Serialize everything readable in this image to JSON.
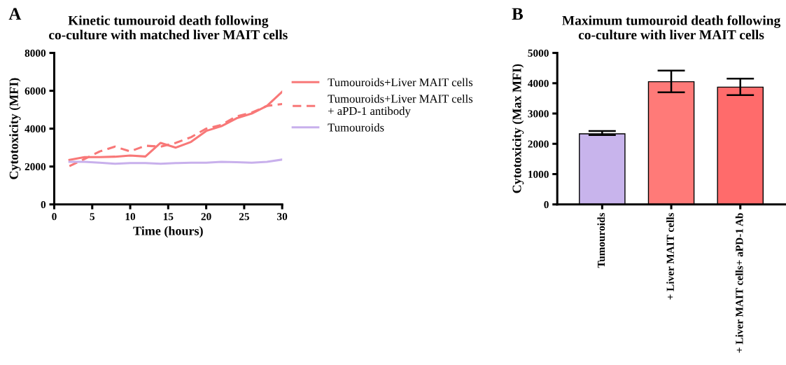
{
  "chart_data": [
    {
      "type": "line",
      "title": "Kinetic tumouroid death following\nco-culture with matched liver MAIT cells",
      "xlabel": "Time (hours)",
      "ylabel": "Cytotoxicity (MFI)",
      "annotations": [
        "A"
      ],
      "x": [
        2,
        4,
        6,
        8,
        10,
        12,
        14,
        16,
        18,
        20,
        22,
        24,
        26,
        28,
        30
      ],
      "xlim": [
        0,
        30
      ],
      "xticks": [
        0,
        5,
        10,
        15,
        20,
        25,
        30
      ],
      "ylim": [
        0,
        8000
      ],
      "yticks": [
        0,
        2000,
        4000,
        6000,
        8000
      ],
      "grid": false,
      "legend": "right",
      "marker": "none",
      "series": [
        {
          "name": "Tumouroids+Liver MAIT cells",
          "color": "#f87878",
          "line_style": "solid",
          "values": [
            2350,
            2500,
            2500,
            2520,
            2580,
            2530,
            3250,
            3000,
            3300,
            3880,
            4130,
            4550,
            4800,
            5200,
            5950
          ]
        },
        {
          "name": "Tumouroids+Liver MAIT cells\n+ aPD-1 antibody",
          "color": "#f87878",
          "line_style": "dashed",
          "values": [
            2020,
            2400,
            2800,
            3050,
            2800,
            3100,
            3050,
            3250,
            3550,
            4000,
            4200,
            4650,
            4850,
            5200,
            5300
          ]
        },
        {
          "name": "Tumouroids",
          "color": "#c8b0ec",
          "line_style": "solid",
          "values": [
            2250,
            2250,
            2200,
            2150,
            2180,
            2180,
            2150,
            2180,
            2200,
            2200,
            2250,
            2230,
            2200,
            2250,
            2370
          ]
        }
      ]
    },
    {
      "type": "bar",
      "title": "Maximum tumouroid death following\nco-culture with liver MAIT cells",
      "ylabel": "Cytotoxicity (Max MFI)",
      "annotations": [
        "B"
      ],
      "categories": [
        "Tumouroids",
        "+ Liver MAIT cells",
        "+ Liver MAIT cells+ aPD-1 Ab"
      ],
      "values": [
        2330,
        4050,
        3870
      ],
      "errors": [
        [
          2290,
          2420
        ],
        [
          3700,
          4420
        ],
        [
          3610,
          4150
        ]
      ],
      "colors": [
        "#c8b4ec",
        "#ff7a78",
        "#ff6b6b"
      ],
      "ylim": [
        0,
        5000
      ],
      "yticks": [
        0,
        1000,
        2000,
        3000,
        4000,
        5000
      ],
      "grid": false
    }
  ]
}
